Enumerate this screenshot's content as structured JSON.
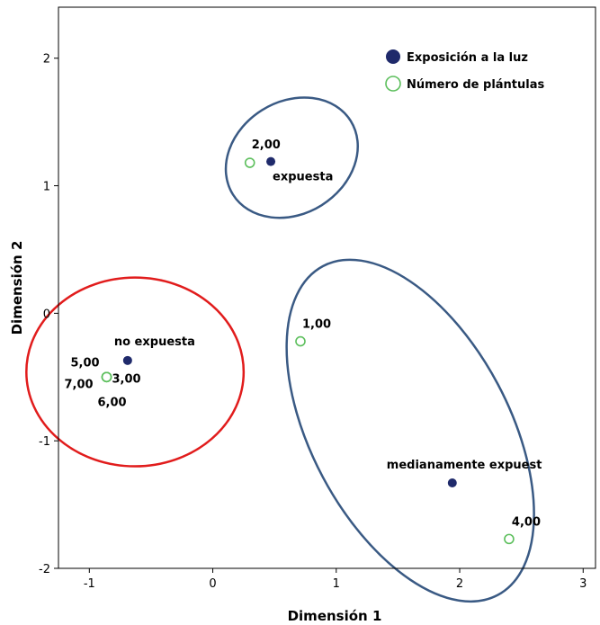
{
  "chart_data": {
    "type": "scatter",
    "title": "",
    "xlabel": "Dimensión 1",
    "ylabel": "Dimensión 2",
    "xlim": [
      -1.25,
      3.1
    ],
    "ylim": [
      -2.0,
      2.4
    ],
    "xticks": [
      -1,
      0,
      1,
      2,
      3
    ],
    "yticks": [
      -2,
      -1,
      0,
      1,
      2
    ],
    "x_tick_labels": [
      "-1",
      "0",
      "1",
      "2",
      "3"
    ],
    "y_tick_labels": [
      "-2",
      "-1",
      "0",
      "1",
      "2"
    ],
    "grid": false,
    "legend_position": "top-right",
    "series": [
      {
        "name": "Exposición a la luz",
        "marker": "filled-circle",
        "color": "#1f2a6b",
        "points": [
          {
            "label": "expuesta",
            "x": 0.47,
            "y": 1.19
          },
          {
            "label": "no expuesta",
            "x": -0.69,
            "y": -0.37
          },
          {
            "label": "medianamente expuest",
            "x": 1.94,
            "y": -1.33
          }
        ]
      },
      {
        "name": "Número de plántulas",
        "marker": "open-circle",
        "color": "#5cbf5c",
        "points": [
          {
            "label": "1,00",
            "x": 0.71,
            "y": -0.22
          },
          {
            "label": "2,00",
            "x": 0.3,
            "y": 1.18
          },
          {
            "label": "3,00",
            "x": -0.86,
            "y": -0.5
          },
          {
            "label": "4,00",
            "x": 2.4,
            "y": -1.77
          },
          {
            "label": "5,00",
            "x": -0.86,
            "y": -0.5
          },
          {
            "label": "6,00",
            "x": -0.86,
            "y": -0.5
          },
          {
            "label": "7,00",
            "x": -0.86,
            "y": -0.5
          }
        ]
      }
    ],
    "annotations": [
      {
        "type": "ellipse",
        "color": "#3a5a84",
        "center": [
          0.64,
          1.22
        ],
        "rx_data": 0.75,
        "ry_data": 0.44
      },
      {
        "type": "ellipse",
        "color": "#e11c1c",
        "center": [
          -0.63,
          -0.46
        ],
        "rx_data": 0.88,
        "ry_data": 0.74
      },
      {
        "type": "ellipse",
        "color": "#3a5a84",
        "center": [
          1.6,
          -0.92
        ],
        "rx_data": 1.07,
        "ry_data": 1.46
      }
    ]
  }
}
